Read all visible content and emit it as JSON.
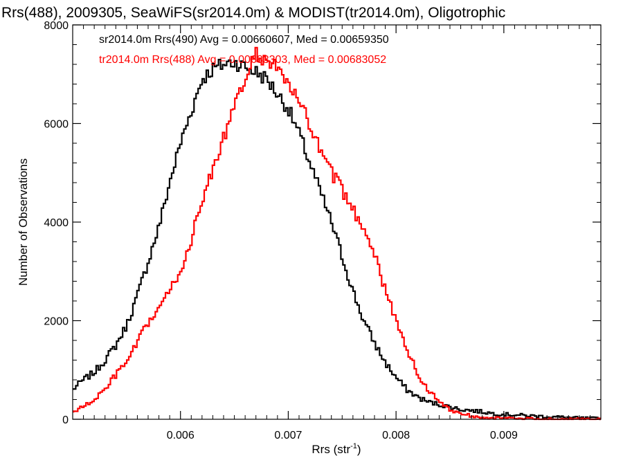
{
  "chart_data": {
    "type": "line",
    "title": "Rrs(488), 2009305, SeaWiFS(sr2014.0m) & MODIST(tr2014.0m), Oligotrophic",
    "xlabel": "Rrs (str",
    "xlabel_sup": "-1",
    "xlabel_end": ")",
    "ylabel": "Number of Observations",
    "xlim": [
      0.005,
      0.0099
    ],
    "ylim": [
      0,
      8000
    ],
    "x_ticks": [
      {
        "value": 0.006,
        "label": "0.006"
      },
      {
        "value": 0.007,
        "label": "0.007"
      },
      {
        "value": 0.008,
        "label": "0.008"
      },
      {
        "value": 0.009,
        "label": "0.009"
      }
    ],
    "y_ticks": [
      {
        "value": 0,
        "label": "0"
      },
      {
        "value": 2000,
        "label": "2000"
      },
      {
        "value": 4000,
        "label": "4000"
      },
      {
        "value": 6000,
        "label": "6000"
      },
      {
        "value": 8000,
        "label": "8000"
      }
    ],
    "legend_position": "top-left",
    "grid": false,
    "series": [
      {
        "name": "sr2014.0m Rrs(490) Avg = 0.00660607, Med = 0.00659350",
        "color": "#000000",
        "step": true,
        "points": [
          [
            0.005,
            600
          ],
          [
            0.0051,
            800
          ],
          [
            0.0052,
            950
          ],
          [
            0.0053,
            1200
          ],
          [
            0.0054,
            1500
          ],
          [
            0.0055,
            1900
          ],
          [
            0.0056,
            2500
          ],
          [
            0.0057,
            3200
          ],
          [
            0.0058,
            3900
          ],
          [
            0.0059,
            4800
          ],
          [
            0.006,
            5600
          ],
          [
            0.0061,
            6250
          ],
          [
            0.0062,
            6900
          ],
          [
            0.0063,
            7100
          ],
          [
            0.0064,
            7200
          ],
          [
            0.0065,
            7250
          ],
          [
            0.0066,
            7150
          ],
          [
            0.0067,
            7050
          ],
          [
            0.0068,
            6900
          ],
          [
            0.0069,
            6600
          ],
          [
            0.007,
            6300
          ],
          [
            0.0071,
            5800
          ],
          [
            0.0072,
            5200
          ],
          [
            0.0073,
            4600
          ],
          [
            0.0074,
            4000
          ],
          [
            0.0075,
            3300
          ],
          [
            0.0076,
            2600
          ],
          [
            0.0077,
            2000
          ],
          [
            0.0078,
            1550
          ],
          [
            0.0079,
            1150
          ],
          [
            0.008,
            850
          ],
          [
            0.0081,
            600
          ],
          [
            0.0082,
            450
          ],
          [
            0.0083,
            350
          ],
          [
            0.0084,
            300
          ],
          [
            0.0085,
            250
          ],
          [
            0.0086,
            200
          ],
          [
            0.0087,
            180
          ],
          [
            0.0088,
            150
          ],
          [
            0.0089,
            120
          ],
          [
            0.009,
            100
          ],
          [
            0.0091,
            90
          ],
          [
            0.0092,
            75
          ],
          [
            0.0093,
            65
          ],
          [
            0.0094,
            55
          ],
          [
            0.0095,
            45
          ],
          [
            0.0096,
            35
          ],
          [
            0.0097,
            25
          ],
          [
            0.0098,
            20
          ],
          [
            0.0099,
            15
          ]
        ]
      },
      {
        "name": "tr2014.0m Rrs(488) Avg = 0.00683303, Med = 0.00683052",
        "color": "#ff0000",
        "step": true,
        "points": [
          [
            0.005,
            150
          ],
          [
            0.0051,
            250
          ],
          [
            0.0052,
            400
          ],
          [
            0.0053,
            600
          ],
          [
            0.0054,
            900
          ],
          [
            0.0055,
            1150
          ],
          [
            0.0056,
            1550
          ],
          [
            0.0057,
            1950
          ],
          [
            0.0058,
            2250
          ],
          [
            0.0059,
            2600
          ],
          [
            0.006,
            3000
          ],
          [
            0.0061,
            3650
          ],
          [
            0.0062,
            4400
          ],
          [
            0.0063,
            5100
          ],
          [
            0.0064,
            5700
          ],
          [
            0.0065,
            6300
          ],
          [
            0.0066,
            6900
          ],
          [
            0.0067,
            7400
          ],
          [
            0.0068,
            7300
          ],
          [
            0.0069,
            7100
          ],
          [
            0.007,
            6800
          ],
          [
            0.0071,
            6400
          ],
          [
            0.0072,
            6000
          ],
          [
            0.0073,
            5400
          ],
          [
            0.0074,
            5000
          ],
          [
            0.0075,
            4650
          ],
          [
            0.0076,
            4250
          ],
          [
            0.0077,
            3900
          ],
          [
            0.0078,
            3400
          ],
          [
            0.0079,
            2600
          ],
          [
            0.008,
            2000
          ],
          [
            0.0081,
            1450
          ],
          [
            0.0082,
            900
          ],
          [
            0.0083,
            600
          ],
          [
            0.0084,
            350
          ],
          [
            0.0085,
            200
          ],
          [
            0.0086,
            120
          ],
          [
            0.0087,
            70
          ],
          [
            0.0088,
            45
          ],
          [
            0.0089,
            30
          ],
          [
            0.009,
            20
          ],
          [
            0.0091,
            14
          ],
          [
            0.0092,
            10
          ],
          [
            0.0093,
            7
          ],
          [
            0.0094,
            5
          ],
          [
            0.0095,
            4
          ],
          [
            0.0096,
            3
          ],
          [
            0.0097,
            2
          ],
          [
            0.0098,
            1
          ],
          [
            0.0099,
            1
          ]
        ]
      }
    ]
  }
}
